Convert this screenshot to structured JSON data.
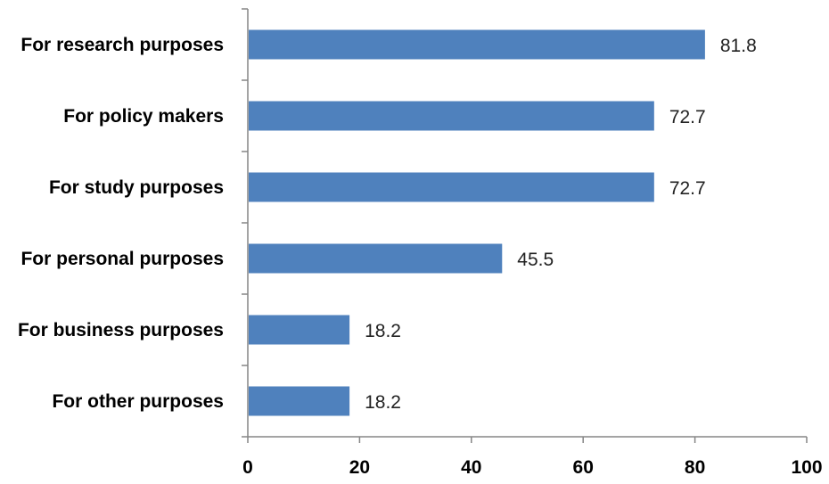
{
  "chart_data": {
    "type": "bar",
    "orientation": "horizontal",
    "categories": [
      "For research purposes",
      "For policy makers",
      "For study purposes",
      "For personal purposes",
      "For business purposes",
      "For other purposes"
    ],
    "values": [
      81.8,
      72.7,
      72.7,
      45.5,
      18.2,
      18.2
    ],
    "data_labels": [
      "81.8",
      "72.7",
      "72.7",
      "45.5",
      "18.2",
      "18.2"
    ],
    "xlim": [
      0,
      100
    ],
    "x_ticks": [
      "0",
      "20",
      "40",
      "60",
      "80",
      "100"
    ],
    "grid": false,
    "legend": "none",
    "bar_color": "#4F81BD"
  }
}
